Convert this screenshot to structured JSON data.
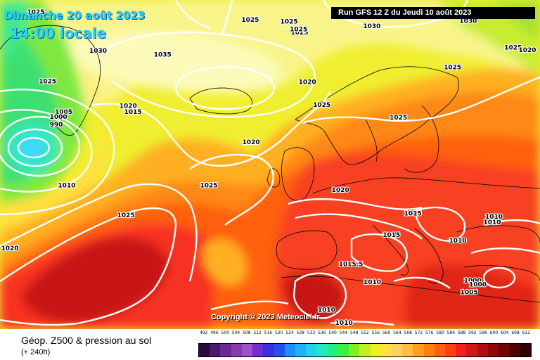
{
  "header": {
    "date": "Dimanche 20 août 2023",
    "time": "14:00 locale",
    "run": "Run GFS 12 Z du Jeudi 10 août 2023"
  },
  "copyright": "Copyright © 2023 Meteociel.fr",
  "footer": {
    "title": "Géop. Z500 & pression au sol",
    "subtitle": "(+ 240h)"
  },
  "legend": {
    "values": [
      "492",
      "496",
      "500",
      "504",
      "508",
      "512",
      "516",
      "520",
      "524",
      "528",
      "532",
      "536",
      "540",
      "544",
      "548",
      "552",
      "556",
      "560",
      "564",
      "568",
      "572",
      "576",
      "580",
      "584",
      "588",
      "592",
      "596",
      "600",
      "604",
      "608",
      "612"
    ],
    "colors": [
      "#2a0a3a",
      "#4b1a6b",
      "#6a2a90",
      "#8a3ab0",
      "#a050c8",
      "#7030d0",
      "#3a30e0",
      "#2050f0",
      "#1e90ff",
      "#20b0ff",
      "#20d0f0",
      "#20e8c0",
      "#20f080",
      "#40f040",
      "#80f020",
      "#c0f020",
      "#f0f020",
      "#ffe040",
      "#ffd060",
      "#ffc040",
      "#ffa020",
      "#ff8010",
      "#ff6010",
      "#ff4010",
      "#f02020",
      "#d01818",
      "#b01010",
      "#900808",
      "#700404",
      "#500202",
      "#300000"
    ]
  },
  "pressure_labels": [
    {
      "text": "1025",
      "lon": -54.7,
      "lat": 80.6
    },
    {
      "text": "1025",
      "lon": -5.5,
      "lat": 79.6
    },
    {
      "text": "1025",
      "lon": 3.4,
      "lat": 79.4
    },
    {
      "text": "1025",
      "lon": 5.8,
      "lat": 78.0
    },
    {
      "text": "1025",
      "lon": 5.6,
      "lat": 78.4
    },
    {
      "text": "1030",
      "lon": 22.4,
      "lat": 78.8
    },
    {
      "text": "1030",
      "lon": 44.5,
      "lat": 79.5
    },
    {
      "text": "1025",
      "lon": 54.8,
      "lat": 76.1
    },
    {
      "text": "1020",
      "lon": 60.7,
      "lat": 75.8
    },
    {
      "text": "1025",
      "lon": -52.0,
      "lat": 71.8
    },
    {
      "text": "1030",
      "lon": -40.4,
      "lat": 75.7
    },
    {
      "text": "1035",
      "lon": -25.6,
      "lat": 75.2
    },
    {
      "text": "1020",
      "lon": 7.6,
      "lat": 71.7
    },
    {
      "text": "1025",
      "lon": 40.9,
      "lat": 73.6
    },
    {
      "text": "1025",
      "lon": 10.9,
      "lat": 68.8
    },
    {
      "text": "1025",
      "lon": 28.5,
      "lat": 67.2
    },
    {
      "text": "1020",
      "lon": -33.5,
      "lat": 68.7
    },
    {
      "text": "1015",
      "lon": -32.4,
      "lat": 67.9
    },
    {
      "text": "1005",
      "lon": -48.3,
      "lat": 67.9
    },
    {
      "text": "1000",
      "lon": -49.5,
      "lat": 67.3
    },
    {
      "text": "990",
      "lon": -50.0,
      "lat": 66.3
    },
    {
      "text": "1020",
      "lon": -5.3,
      "lat": 64.1
    },
    {
      "text": "1010",
      "lon": -47.6,
      "lat": 58.6
    },
    {
      "text": "1025",
      "lon": -15.0,
      "lat": 58.6
    },
    {
      "text": "1020",
      "lon": 15.2,
      "lat": 58.0
    },
    {
      "text": "1025",
      "lon": -34.0,
      "lat": 54.8
    },
    {
      "text": "1015",
      "lon": 31.8,
      "lat": 55.0
    },
    {
      "text": "1010",
      "lon": 50.4,
      "lat": 54.6
    },
    {
      "text": "1010",
      "lon": 50.0,
      "lat": 53.9
    },
    {
      "text": "1015",
      "lon": 26.9,
      "lat": 52.3
    },
    {
      "text": "1010",
      "lon": 42.1,
      "lat": 51.6
    },
    {
      "text": "1020",
      "lon": -61.1,
      "lat": 50.6
    },
    {
      "text": "1015.5",
      "lon": 17.6,
      "lat": 48.6
    },
    {
      "text": "1010",
      "lon": 22.5,
      "lat": 46.3
    },
    {
      "text": "1000",
      "lon": 45.5,
      "lat": 46.5
    },
    {
      "text": "1000",
      "lon": 46.7,
      "lat": 46.0
    },
    {
      "text": "1005",
      "lon": 44.7,
      "lat": 45.0
    },
    {
      "text": "1010",
      "lon": 12.0,
      "lat": 42.8
    },
    {
      "text": "1010",
      "lon": 16.0,
      "lat": 40.0
    }
  ]
}
